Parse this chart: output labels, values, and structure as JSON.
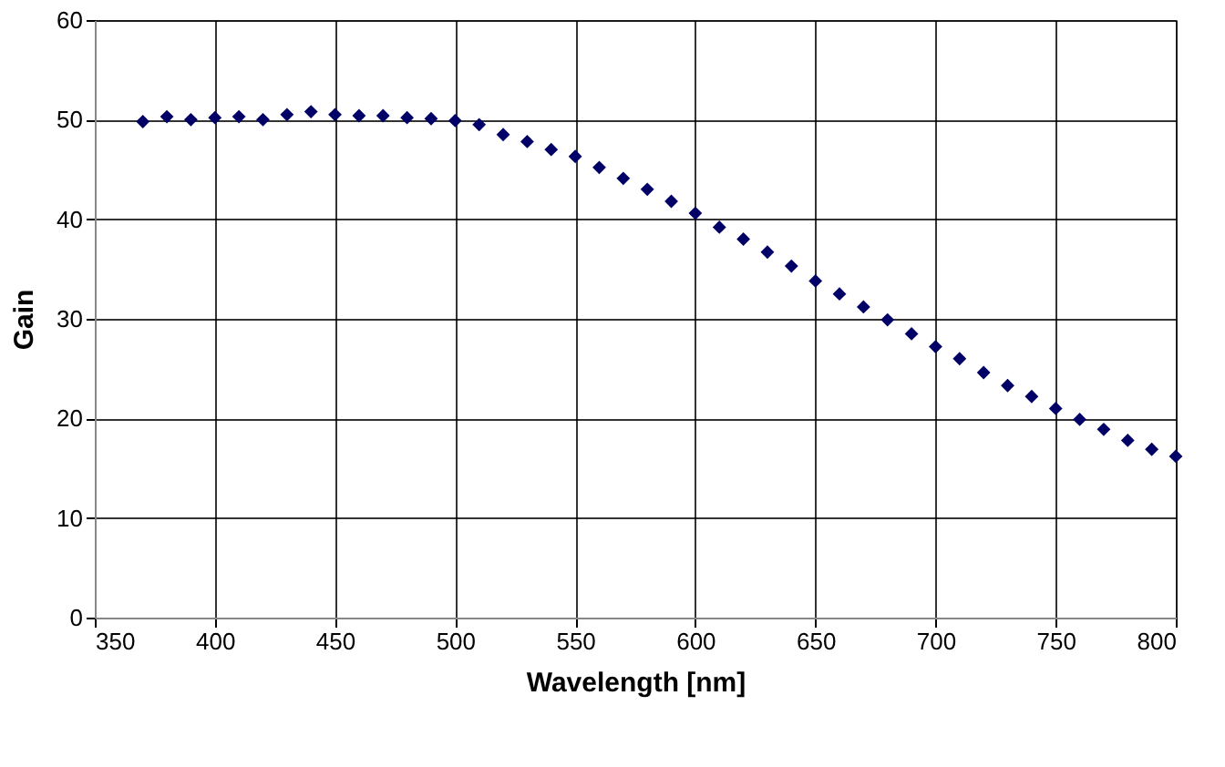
{
  "chart_data": {
    "type": "scatter",
    "xlabel": "Wavelength [nm]",
    "ylabel": "Gain",
    "x": [
      370,
      380,
      390,
      400,
      410,
      420,
      430,
      440,
      450,
      460,
      470,
      480,
      490,
      500,
      510,
      520,
      530,
      540,
      550,
      560,
      570,
      580,
      590,
      600,
      610,
      620,
      630,
      640,
      650,
      660,
      670,
      680,
      690,
      700,
      710,
      720,
      730,
      740,
      750,
      760,
      770,
      780,
      790,
      800
    ],
    "series": [
      {
        "color": "#000066",
        "values": [
          49.8,
          50.3,
          50.0,
          50.2,
          50.3,
          50.0,
          50.5,
          50.8,
          50.5,
          50.4,
          50.4,
          50.2,
          50.1,
          49.9,
          49.5,
          48.5,
          47.8,
          47.0,
          46.3,
          45.2,
          44.1,
          43.0,
          41.8,
          40.6,
          39.2,
          38.0,
          36.7,
          35.3,
          33.8,
          32.5,
          31.2,
          29.9,
          28.5,
          27.2,
          26.0,
          24.6,
          23.3,
          22.2,
          21.0,
          19.9,
          18.9,
          17.8,
          16.9,
          16.2
        ]
      }
    ],
    "xlim": [
      350,
      800
    ],
    "xticks": [
      350,
      400,
      450,
      500,
      550,
      600,
      650,
      700,
      750,
      800
    ],
    "ylim": [
      0,
      60
    ],
    "yticks": [
      0,
      10,
      20,
      30,
      40,
      50,
      60
    ],
    "marker": "diamond",
    "grid": true
  }
}
